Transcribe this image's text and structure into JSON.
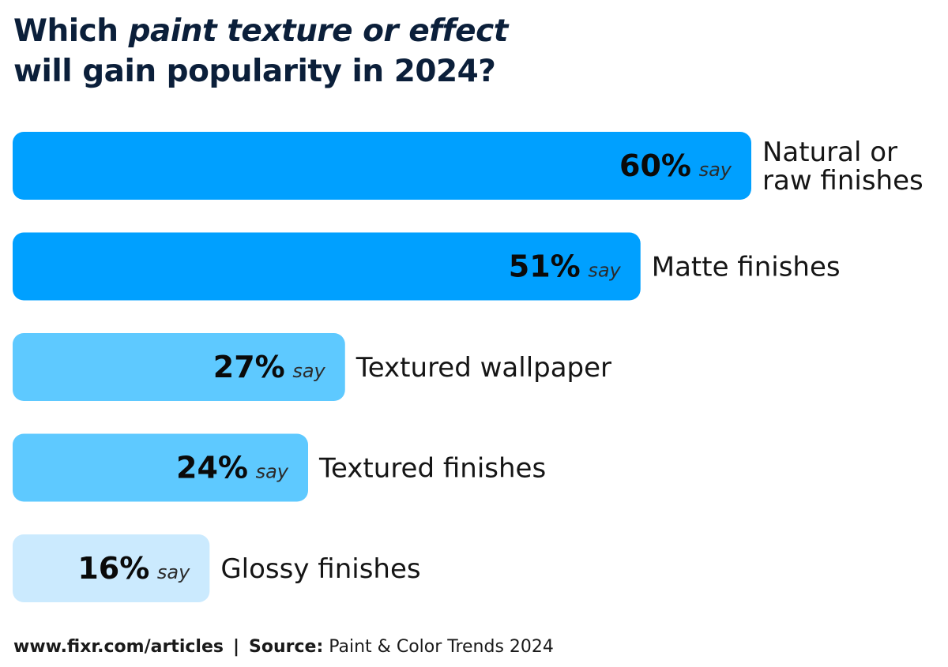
{
  "title": {
    "line1_plain": "Which ",
    "line1_italic": "paint texture or effect",
    "line2": "will gain popularity in 2024?"
  },
  "footer": {
    "url": "www.fixr.com/articles",
    "separator": "|",
    "source_label": "Source:",
    "source_text": " Paint & Color Trends 2024"
  },
  "say_word": "say",
  "colors": {
    "dark": "#00a0ff",
    "mid": "#5ec9ff",
    "light": "#cbeafe"
  },
  "chart_data": {
    "type": "bar",
    "orientation": "horizontal",
    "title": "Which paint texture or effect will gain popularity in 2024?",
    "categories": [
      "Natural or raw finishes",
      "Matte finishes",
      "Textured wallpaper",
      "Textured finishes",
      "Glossy finishes"
    ],
    "label_lines": [
      [
        "Natural or",
        "raw finishes"
      ],
      [
        "Matte finishes"
      ],
      [
        "Textured wallpaper"
      ],
      [
        "Textured finishes"
      ],
      [
        "Glossy finishes"
      ]
    ],
    "values": [
      60,
      51,
      27,
      24,
      16
    ],
    "value_labels": [
      "60%",
      "51%",
      "27%",
      "24%",
      "16%"
    ],
    "unit": "%",
    "bar_colors": [
      "#00a0ff",
      "#00a0ff",
      "#5ec9ff",
      "#5ec9ff",
      "#cbeafe"
    ],
    "grid": false,
    "legend": "none"
  }
}
